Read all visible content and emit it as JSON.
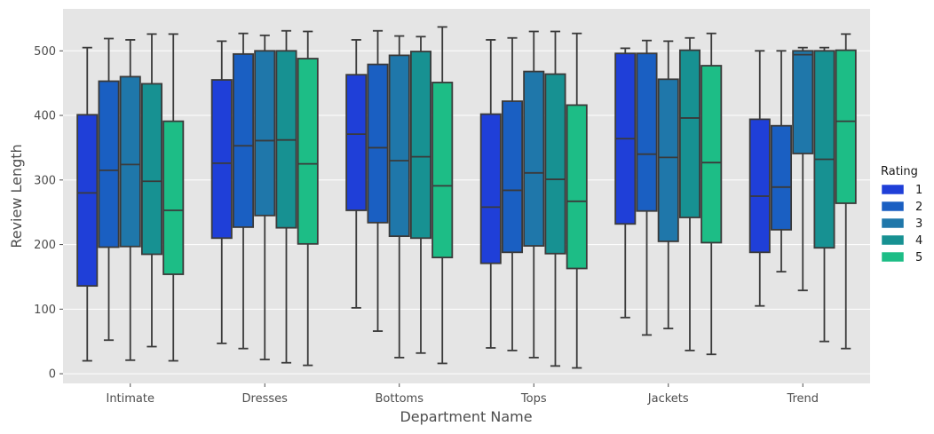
{
  "chart_data": {
    "type": "boxplot",
    "xlabel": "Department Name",
    "ylabel": "Review Length",
    "categories": [
      "Intimate",
      "Dresses",
      "Bottoms",
      "Tops",
      "Jackets",
      "Trend"
    ],
    "ylim": [
      -15,
      565
    ],
    "yticks": [
      0,
      100,
      200,
      300,
      400,
      500
    ],
    "grid": true,
    "legend": {
      "title": "Rating",
      "placement": "right",
      "entries": [
        "1",
        "2",
        "3",
        "4",
        "5"
      ],
      "colors": [
        "#1f3fd8",
        "#1a5fc2",
        "#1f77aa",
        "#179192",
        "#1dbd86"
      ]
    },
    "series": [
      {
        "name": "1",
        "boxes": [
          {
            "whislo": 20,
            "q1": 136,
            "med": 280,
            "q3": 401,
            "whishi": 505
          },
          {
            "whislo": 47,
            "q1": 210,
            "med": 326,
            "q3": 455,
            "whishi": 515
          },
          {
            "whislo": 102,
            "q1": 253,
            "med": 371,
            "q3": 463,
            "whishi": 517
          },
          {
            "whislo": 40,
            "q1": 171,
            "med": 258,
            "q3": 402,
            "whishi": 517
          },
          {
            "whislo": 87,
            "q1": 232,
            "med": 364,
            "q3": 496,
            "whishi": 504
          },
          {
            "whislo": 105,
            "q1": 188,
            "med": 275,
            "q3": 394,
            "whishi": 500
          }
        ]
      },
      {
        "name": "2",
        "boxes": [
          {
            "whislo": 52,
            "q1": 196,
            "med": 315,
            "q3": 453,
            "whishi": 519
          },
          {
            "whislo": 39,
            "q1": 227,
            "med": 353,
            "q3": 495,
            "whishi": 527
          },
          {
            "whislo": 66,
            "q1": 234,
            "med": 350,
            "q3": 479,
            "whishi": 531
          },
          {
            "whislo": 36,
            "q1": 188,
            "med": 284,
            "q3": 422,
            "whishi": 520
          },
          {
            "whislo": 60,
            "q1": 252,
            "med": 340,
            "q3": 496,
            "whishi": 516
          },
          {
            "whislo": 158,
            "q1": 223,
            "med": 289,
            "q3": 384,
            "whishi": 500
          }
        ]
      },
      {
        "name": "3",
        "boxes": [
          {
            "whislo": 21,
            "q1": 197,
            "med": 324,
            "q3": 460,
            "whishi": 517
          },
          {
            "whislo": 22,
            "q1": 245,
            "med": 361,
            "q3": 500,
            "whishi": 524
          },
          {
            "whislo": 25,
            "q1": 213,
            "med": 330,
            "q3": 493,
            "whishi": 523
          },
          {
            "whislo": 25,
            "q1": 198,
            "med": 311,
            "q3": 468,
            "whishi": 530
          },
          {
            "whislo": 70,
            "q1": 205,
            "med": 335,
            "q3": 456,
            "whishi": 515
          },
          {
            "whislo": 129,
            "q1": 341,
            "med": 494,
            "q3": 500,
            "whishi": 505
          }
        ]
      },
      {
        "name": "4",
        "boxes": [
          {
            "whislo": 42,
            "q1": 185,
            "med": 298,
            "q3": 449,
            "whishi": 526
          },
          {
            "whislo": 17,
            "q1": 226,
            "med": 362,
            "q3": 500,
            "whishi": 531
          },
          {
            "whislo": 32,
            "q1": 210,
            "med": 336,
            "q3": 499,
            "whishi": 522
          },
          {
            "whislo": 12,
            "q1": 186,
            "med": 301,
            "q3": 464,
            "whishi": 530
          },
          {
            "whislo": 36,
            "q1": 242,
            "med": 396,
            "q3": 501,
            "whishi": 520
          },
          {
            "whislo": 50,
            "q1": 195,
            "med": 332,
            "q3": 500,
            "whishi": 505
          }
        ]
      },
      {
        "name": "5",
        "boxes": [
          {
            "whislo": 20,
            "q1": 154,
            "med": 253,
            "q3": 391,
            "whishi": 526
          },
          {
            "whislo": 13,
            "q1": 201,
            "med": 325,
            "q3": 488,
            "whishi": 530
          },
          {
            "whislo": 16,
            "q1": 180,
            "med": 291,
            "q3": 451,
            "whishi": 537
          },
          {
            "whislo": 9,
            "q1": 163,
            "med": 267,
            "q3": 416,
            "whishi": 527
          },
          {
            "whislo": 30,
            "q1": 203,
            "med": 327,
            "q3": 477,
            "whishi": 527
          },
          {
            "whislo": 39,
            "q1": 264,
            "med": 391,
            "q3": 501,
            "whishi": 526
          }
        ]
      }
    ]
  }
}
